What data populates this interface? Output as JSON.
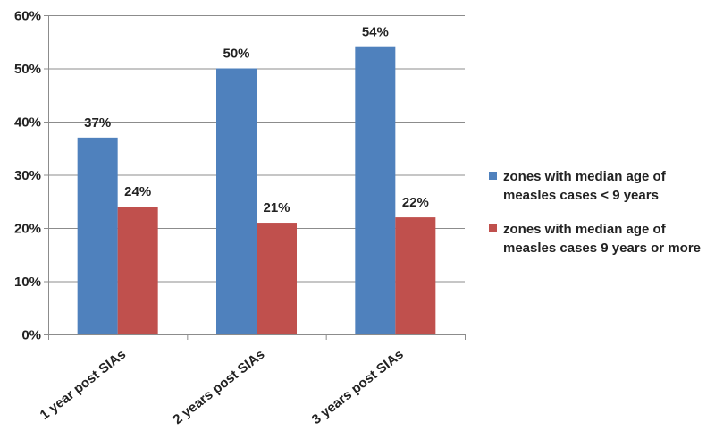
{
  "chart_data": {
    "type": "bar",
    "title": "",
    "xlabel": "",
    "ylabel": "",
    "categories": [
      "1 year post SIAs",
      "2 years post SIAs",
      "3 years post SIAs"
    ],
    "series": [
      {
        "name": "zones with median age of measles cases < 9 years",
        "legend_lines": [
          "zones with median age of",
          "measles cases < 9 years"
        ],
        "values": [
          37,
          50,
          54
        ],
        "labels": [
          "37%",
          "50%",
          "54%"
        ],
        "color": "#4F81BD"
      },
      {
        "name": "zones with median age of measles cases 9 years or more",
        "legend_lines": [
          "zones with median age of",
          "measles cases 9 years or more"
        ],
        "values": [
          24,
          21,
          22
        ],
        "labels": [
          "24%",
          "21%",
          "22%"
        ],
        "color": "#C0504D"
      }
    ],
    "ylim": [
      0,
      60
    ],
    "yticks": [
      0,
      10,
      20,
      30,
      40,
      50,
      60
    ],
    "ytick_labels": [
      "0%",
      "10%",
      "20%",
      "30%",
      "40%",
      "50%",
      "60%"
    ],
    "grid": true,
    "legend_position": "right"
  }
}
